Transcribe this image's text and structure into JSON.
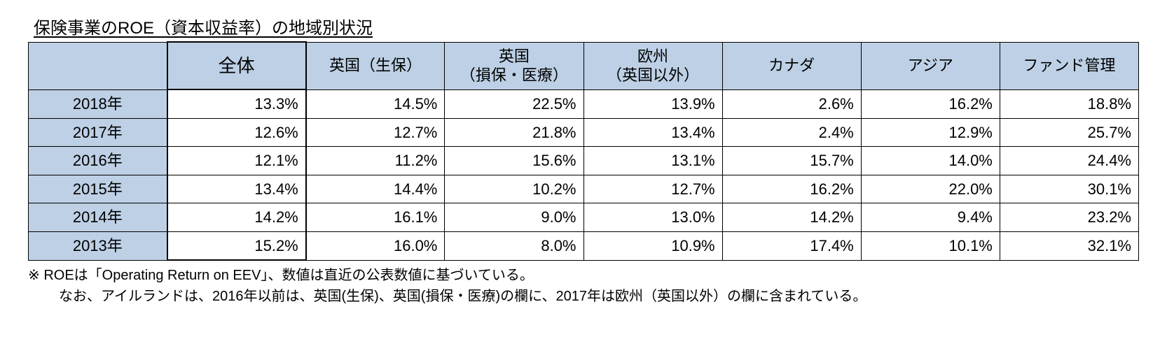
{
  "title": "保険事業のROE（資本収益率）の地域別状況",
  "table": {
    "type": "table",
    "header_bg": "#bdd0e5",
    "border_color": "#000000",
    "emphasis_col_index": 1,
    "columns": [
      {
        "label": "",
        "blank": true
      },
      {
        "label": "全体",
        "emphasis": true
      },
      {
        "label": "英国（生保）"
      },
      {
        "label": "英国\n（損保・医療）"
      },
      {
        "label": "欧州\n（英国以外）"
      },
      {
        "label": "カナダ"
      },
      {
        "label": "アジア"
      },
      {
        "label": "ファンド管理"
      }
    ],
    "rows": [
      {
        "year": "2018年",
        "values": [
          "13.3%",
          "14.5%",
          "22.5%",
          "13.9%",
          "2.6%",
          "16.2%",
          "18.8%"
        ]
      },
      {
        "year": "2017年",
        "values": [
          "12.6%",
          "12.7%",
          "21.8%",
          "13.4%",
          "2.4%",
          "12.9%",
          "25.7%"
        ]
      },
      {
        "year": "2016年",
        "values": [
          "12.1%",
          "11.2%",
          "15.6%",
          "13.1%",
          "15.7%",
          "14.0%",
          "24.4%"
        ]
      },
      {
        "year": "2015年",
        "values": [
          "13.4%",
          "14.4%",
          "10.2%",
          "12.7%",
          "16.2%",
          "22.0%",
          "30.1%"
        ]
      },
      {
        "year": "2014年",
        "values": [
          "14.2%",
          "16.1%",
          "9.0%",
          "13.0%",
          "14.2%",
          "9.4%",
          "23.2%"
        ]
      },
      {
        "year": "2013年",
        "values": [
          "15.2%",
          "16.0%",
          "8.0%",
          "10.9%",
          "17.4%",
          "10.1%",
          "32.1%"
        ]
      }
    ]
  },
  "footnote": {
    "line1": "※ ROEは「Operating Return on EEV」、数値は直近の公表数値に基づいている。",
    "line2": "なお、アイルランドは、2016年以前は、英国(生保)、英国(損保・医療)の欄に、2017年は欧州（英国以外）の欄に含まれている。"
  }
}
